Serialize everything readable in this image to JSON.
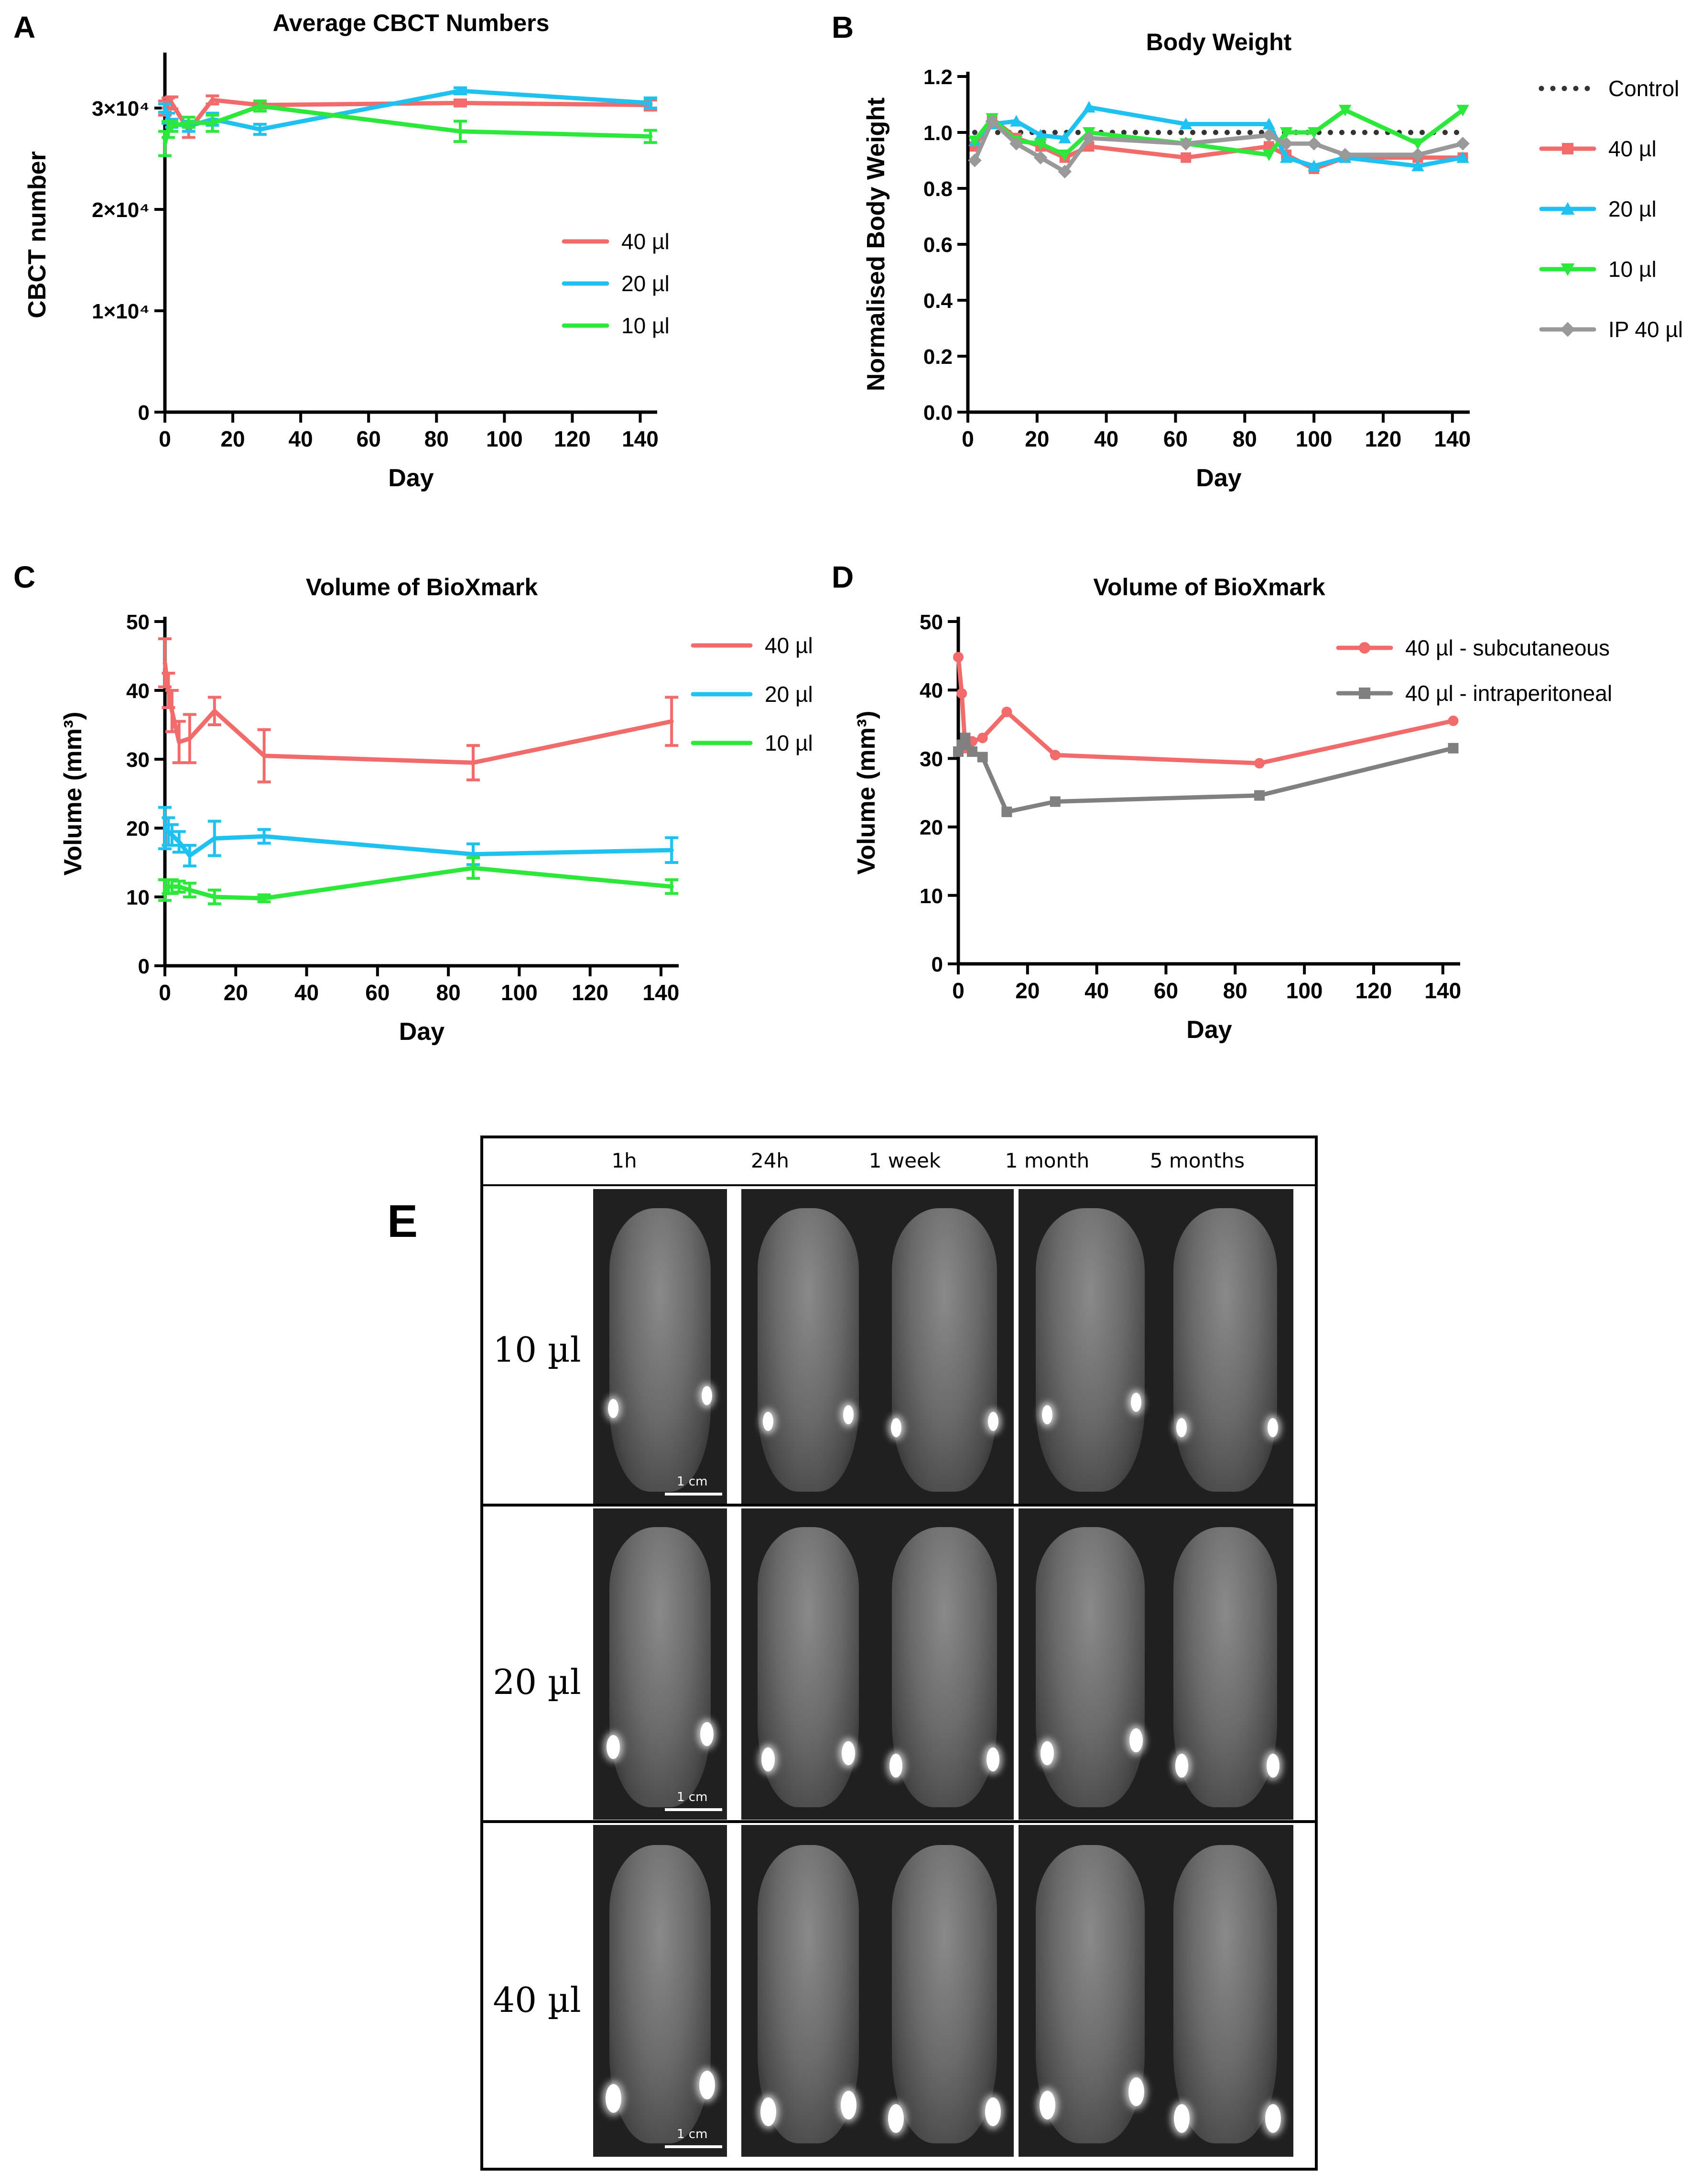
{
  "panels": {
    "A": {
      "label": "A"
    },
    "B": {
      "label": "B"
    },
    "C": {
      "label": "C"
    },
    "D": {
      "label": "D"
    },
    "E": {
      "label": "E"
    }
  },
  "chart_data": [
    {
      "id": "A",
      "type": "line",
      "title": "Average CBCT Numbers",
      "xlabel": "Day",
      "ylabel": "CBCT number",
      "xlim": [
        0,
        145
      ],
      "ylim": [
        0,
        35000
      ],
      "xticks": [
        0,
        20,
        40,
        60,
        80,
        100,
        120,
        140
      ],
      "yticks": [
        0,
        10000,
        20000,
        30000
      ],
      "ytick_labels": [
        "0",
        "1×10⁴",
        "2×10⁴",
        "3×10⁴"
      ],
      "legend_position": "right",
      "series": [
        {
          "name": "40 µl",
          "color": "#f26b6b",
          "x": [
            0,
            1,
            2,
            7,
            14,
            28,
            87,
            143
          ],
          "y": [
            30000,
            30500,
            30500,
            27800,
            30800,
            30300,
            30500,
            30300
          ],
          "err": [
            700,
            500,
            600,
            700,
            400,
            300,
            300,
            500
          ]
        },
        {
          "name": "20 µl",
          "color": "#1ec1f0",
          "x": [
            0,
            1,
            2,
            7,
            14,
            28,
            87,
            143
          ],
          "y": [
            30000,
            29000,
            28500,
            28200,
            28900,
            27900,
            31700,
            30500
          ],
          "err": [
            400,
            500,
            400,
            500,
            600,
            500,
            300,
            500
          ]
        },
        {
          "name": "10 µl",
          "color": "#2ce83b",
          "x": [
            0,
            1,
            2,
            7,
            14,
            28,
            87,
            143
          ],
          "y": [
            26500,
            27900,
            28200,
            28600,
            28500,
            30200,
            27700,
            27200
          ],
          "err": [
            1200,
            800,
            500,
            500,
            800,
            500,
            1000,
            600
          ]
        }
      ]
    },
    {
      "id": "B",
      "type": "line",
      "title": "Body Weight",
      "xlabel": "Day",
      "ylabel": "Normalised Body Weight",
      "xlim": [
        0,
        145
      ],
      "ylim": [
        0,
        1.2
      ],
      "xticks": [
        0,
        20,
        40,
        60,
        80,
        100,
        120,
        140
      ],
      "yticks": [
        0,
        0.2,
        0.4,
        0.6,
        0.8,
        1.0,
        1.2
      ],
      "ytick_labels": [
        "0.0",
        "0.2",
        "0.4",
        "0.6",
        "0.8",
        "1.0",
        "1.2"
      ],
      "legend_position": "right",
      "series": [
        {
          "name": "Control",
          "color": "#333333",
          "dotted": true,
          "marker": "circle",
          "x": [
            2,
            7,
            14,
            21,
            28,
            35,
            63,
            87,
            92,
            100,
            109,
            130,
            143
          ],
          "y": [
            1,
            1,
            1,
            1,
            1,
            1,
            1,
            1,
            1,
            1,
            1,
            1,
            1
          ]
        },
        {
          "name": "40 µl",
          "color": "#f26b6b",
          "marker": "square",
          "x": [
            2,
            7,
            14,
            21,
            28,
            35,
            63,
            87,
            92,
            100,
            109,
            130,
            143
          ],
          "y": [
            0.95,
            1.05,
            0.98,
            0.95,
            0.91,
            0.95,
            0.91,
            0.95,
            0.92,
            0.87,
            0.91,
            0.91,
            0.91
          ]
        },
        {
          "name": "20 µl",
          "color": "#1ec1f0",
          "marker": "triangle-up",
          "x": [
            2,
            7,
            14,
            21,
            28,
            35,
            63,
            87,
            92,
            100,
            109,
            130,
            143
          ],
          "y": [
            0.97,
            1.03,
            1.04,
            0.99,
            0.98,
            1.09,
            1.03,
            1.03,
            0.91,
            0.88,
            0.91,
            0.88,
            0.91
          ]
        },
        {
          "name": "10 µl",
          "color": "#2ce83b",
          "marker": "triangle-down",
          "x": [
            2,
            7,
            14,
            21,
            28,
            35,
            63,
            87,
            92,
            100,
            109,
            130,
            143
          ],
          "y": [
            0.97,
            1.05,
            0.97,
            0.96,
            0.92,
            1.0,
            0.96,
            0.92,
            1.0,
            1.0,
            1.08,
            0.96,
            1.08
          ]
        },
        {
          "name": "IP 40 µl",
          "color": "#999999",
          "marker": "diamond",
          "x": [
            2,
            7,
            14,
            21,
            28,
            35,
            63,
            87,
            92,
            100,
            109,
            130,
            143
          ],
          "y": [
            0.9,
            1.04,
            0.96,
            0.91,
            0.86,
            0.98,
            0.96,
            0.99,
            0.96,
            0.96,
            0.92,
            0.92,
            0.96
          ]
        }
      ]
    },
    {
      "id": "C",
      "type": "line",
      "title": "Volume of BioXmark",
      "xlabel": "Day",
      "ylabel": "Volume (mm³)",
      "xlim": [
        0,
        145
      ],
      "ylim": [
        0,
        50
      ],
      "xticks": [
        0,
        20,
        40,
        60,
        80,
        100,
        120,
        140
      ],
      "yticks": [
        0,
        10,
        20,
        30,
        40,
        50
      ],
      "ytick_labels": [
        "0",
        "10",
        "20",
        "30",
        "40",
        "50"
      ],
      "legend_position": "right",
      "series": [
        {
          "name": "40 µl",
          "color": "#f26b6b",
          "x": [
            0,
            1,
            2,
            4,
            7,
            14,
            28,
            87,
            143
          ],
          "y": [
            44,
            40,
            37,
            32.5,
            33,
            37,
            30.5,
            29.5,
            35.5
          ],
          "err": [
            3.5,
            2.5,
            3,
            3,
            3.5,
            2,
            3.8,
            2.5,
            3.5
          ]
        },
        {
          "name": "20 µl",
          "color": "#1ec1f0",
          "x": [
            0,
            1,
            2,
            4,
            7,
            14,
            28,
            87,
            143
          ],
          "y": [
            20,
            19.5,
            19,
            18,
            16,
            18.5,
            18.8,
            16.2,
            16.8
          ],
          "err": [
            3,
            2,
            1.5,
            1.5,
            1.5,
            2.5,
            1,
            1.5,
            1.8
          ]
        },
        {
          "name": "10 µl",
          "color": "#2ce83b",
          "x": [
            0,
            1,
            2,
            4,
            7,
            14,
            28,
            87,
            143
          ],
          "y": [
            11,
            11.5,
            11.5,
            11.5,
            11,
            10,
            9.8,
            14.2,
            11.5
          ],
          "err": [
            1.5,
            1,
            1,
            0.8,
            1,
            1,
            0.5,
            1.5,
            1
          ]
        }
      ]
    },
    {
      "id": "D",
      "type": "line",
      "title": "Volume of BioXmark",
      "xlabel": "Day",
      "ylabel": "Volume (mm³)",
      "xlim": [
        0,
        145
      ],
      "ylim": [
        0,
        50
      ],
      "xticks": [
        0,
        20,
        40,
        60,
        80,
        100,
        120,
        140
      ],
      "yticks": [
        0,
        10,
        20,
        30,
        40,
        50
      ],
      "ytick_labels": [
        "0",
        "10",
        "20",
        "30",
        "40",
        "50"
      ],
      "legend_position": "top-right",
      "series": [
        {
          "name": "40 µl - subcutaneous",
          "color": "#f26b6b",
          "marker": "circle",
          "x": [
            0,
            1,
            2,
            4,
            7,
            14,
            28,
            87,
            143
          ],
          "y": [
            44.8,
            39.5,
            31.5,
            32.5,
            33,
            36.8,
            30.5,
            29.3,
            35.5
          ]
        },
        {
          "name": "40 µl - intraperitoneal",
          "color": "#808080",
          "marker": "square",
          "x": [
            0,
            1,
            2,
            4,
            7,
            14,
            28,
            87,
            143
          ],
          "y": [
            31,
            32,
            33,
            31,
            30.2,
            22.2,
            23.7,
            24.6,
            31.5
          ]
        }
      ]
    }
  ],
  "imaging": {
    "columns": [
      "1h",
      "24h",
      "1 week",
      "1 month",
      "5 months"
    ],
    "rows": [
      "10  µl",
      "20  µl",
      "40  µl"
    ],
    "scale_label": "1 cm"
  }
}
